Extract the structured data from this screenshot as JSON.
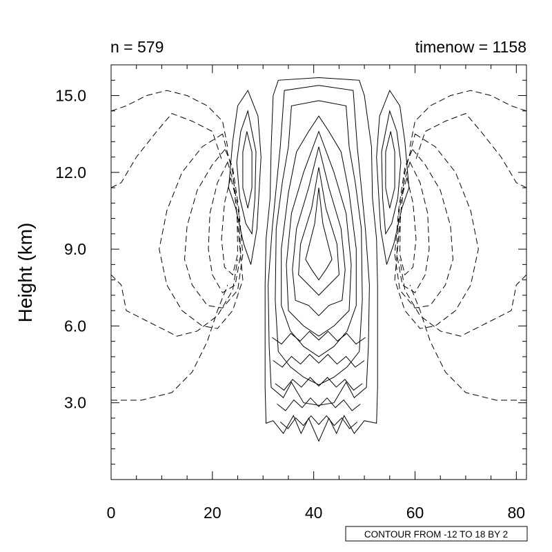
{
  "chart_data": {
    "type": "contour",
    "title_left": "n = 579",
    "title_right": "timenow = 1158",
    "ylabel": "Height (km)",
    "xlabel": "",
    "xlim": [
      0,
      82
    ],
    "ylim": [
      0,
      16.2
    ],
    "x_ticks": [
      0,
      20,
      40,
      60,
      80
    ],
    "x_tick_labels": [
      "0",
      "20",
      "40",
      "60",
      "80"
    ],
    "y_ticks": [
      3,
      6,
      9,
      12,
      15
    ],
    "y_tick_labels": [
      "3.0",
      "6.0",
      "9.0",
      "12.0",
      "15.0"
    ],
    "contour_info": "CONTOUR FROM -12 TO 18 BY 2",
    "contour_levels": {
      "min": -12,
      "max": 18,
      "step": 2
    },
    "negative_contours": "dashed",
    "positive_contours": "solid",
    "grid": false,
    "symmetric_about_x": 41
  }
}
